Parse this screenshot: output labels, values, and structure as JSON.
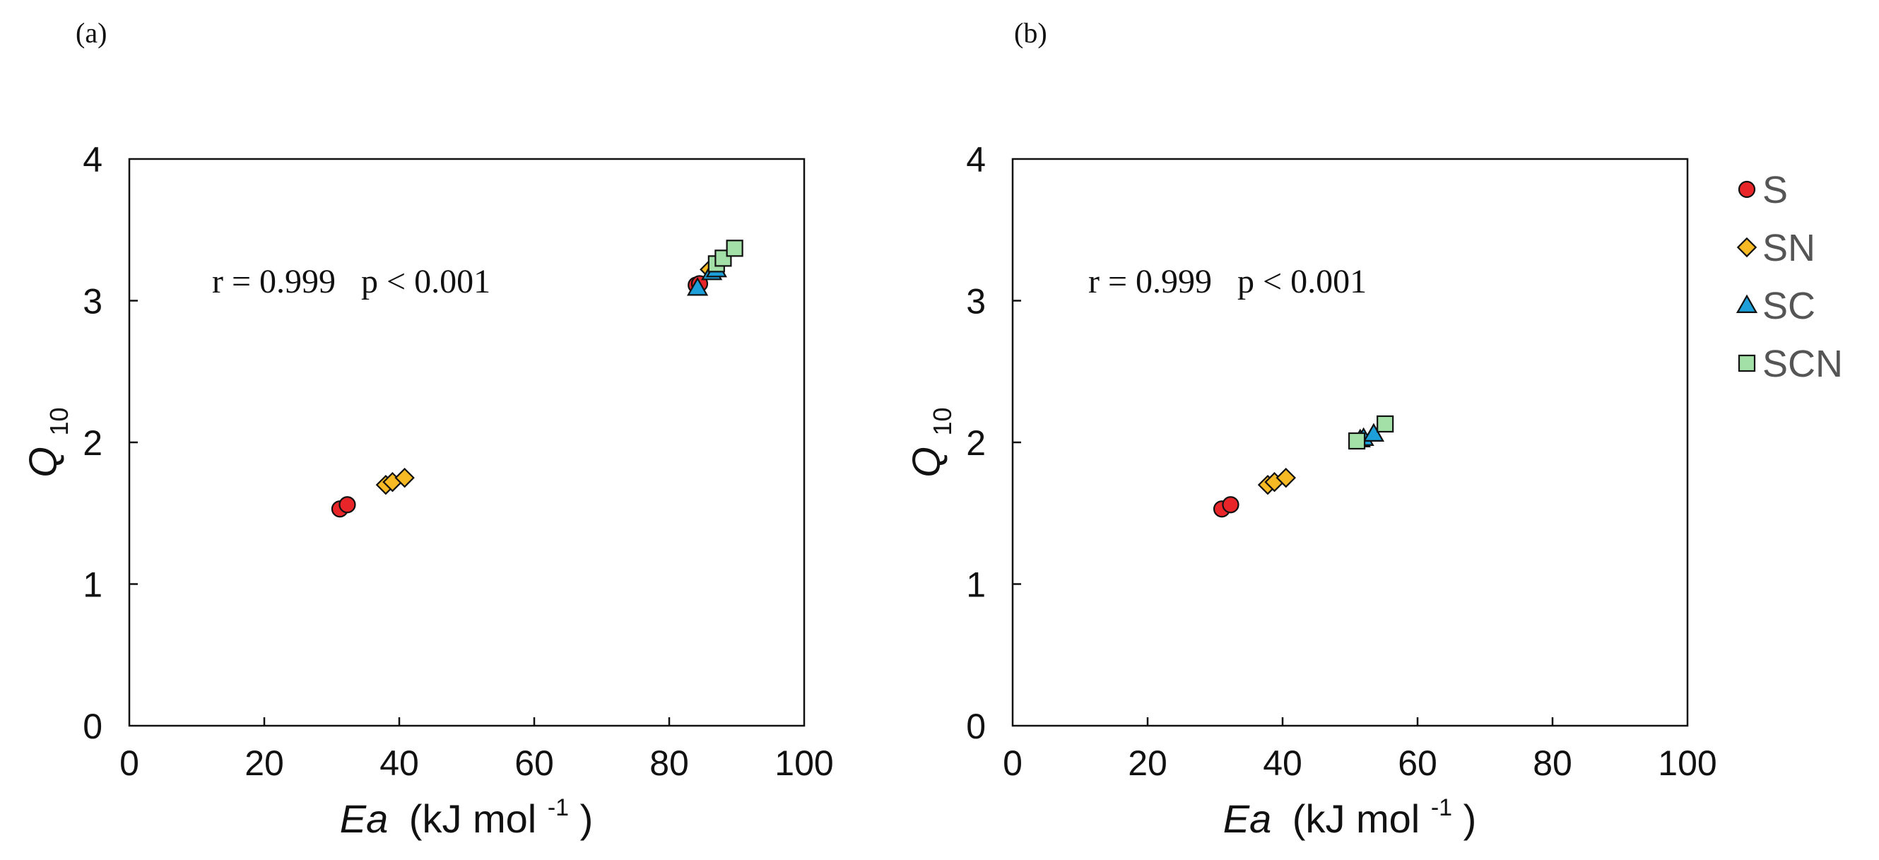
{
  "legend": {
    "position": "right",
    "entries": [
      {
        "label": "S",
        "marker": "circle",
        "color": "#e8262a"
      },
      {
        "label": "SN",
        "marker": "diamond",
        "color": "#f7b924"
      },
      {
        "label": "SC",
        "marker": "triangle",
        "color": "#1d9fd9"
      },
      {
        "label": "SCN",
        "marker": "square",
        "color": "#a3e0a7"
      }
    ]
  },
  "chart_data": [
    {
      "type": "scatter",
      "panel_label": "(a)",
      "xlabel_main": "Ea",
      "xlabel_unit": "(kJ mol",
      "xlabel_sup": "-1",
      "xlabel_close": ")",
      "ylabel_main": "Q",
      "ylabel_sub": "10",
      "xlim": [
        0,
        100
      ],
      "ylim": [
        0,
        4
      ],
      "xticks": [
        0,
        20,
        40,
        60,
        80,
        100
      ],
      "yticks": [
        0,
        1,
        2,
        3,
        4
      ],
      "grid": false,
      "annotation": "r = 0.999   p < 0.001",
      "series": [
        {
          "name": "S",
          "points": [
            [
              31.2,
              1.53
            ],
            [
              32.3,
              1.56
            ],
            [
              84.0,
              3.11
            ],
            [
              84.5,
              3.12
            ]
          ]
        },
        {
          "name": "SN",
          "points": [
            [
              38.0,
              1.7
            ],
            [
              39.0,
              1.72
            ],
            [
              40.8,
              1.75
            ],
            [
              86.0,
              3.22
            ]
          ]
        },
        {
          "name": "SC",
          "points": [
            [
              84.2,
              3.09
            ],
            [
              86.3,
              3.2
            ],
            [
              87.0,
              3.22
            ]
          ]
        },
        {
          "name": "SCN",
          "points": [
            [
              87.0,
              3.26
            ],
            [
              88.0,
              3.3
            ],
            [
              89.7,
              3.37
            ]
          ]
        }
      ]
    },
    {
      "type": "scatter",
      "panel_label": "(b)",
      "xlabel_main": "Ea",
      "xlabel_unit": "(kJ mol",
      "xlabel_sup": "-1",
      "xlabel_close": ")",
      "ylabel_main": "Q",
      "ylabel_sub": "10",
      "xlim": [
        0,
        100
      ],
      "ylim": [
        0,
        4
      ],
      "xticks": [
        0,
        20,
        40,
        60,
        80,
        100
      ],
      "yticks": [
        0,
        1,
        2,
        3,
        4
      ],
      "grid": false,
      "annotation": "r = 0.999   p < 0.001",
      "series": [
        {
          "name": "S",
          "points": [
            [
              31.0,
              1.53
            ],
            [
              32.3,
              1.56
            ]
          ]
        },
        {
          "name": "SN",
          "points": [
            [
              37.8,
              1.7
            ],
            [
              38.8,
              1.72
            ],
            [
              40.5,
              1.75
            ]
          ]
        },
        {
          "name": "SC",
          "points": [
            [
              51.5,
              2.02
            ],
            [
              52.0,
              2.03
            ],
            [
              53.5,
              2.06
            ]
          ]
        },
        {
          "name": "SCN",
          "points": [
            [
              51.0,
              2.01
            ],
            [
              55.2,
              2.13
            ]
          ]
        }
      ]
    }
  ]
}
